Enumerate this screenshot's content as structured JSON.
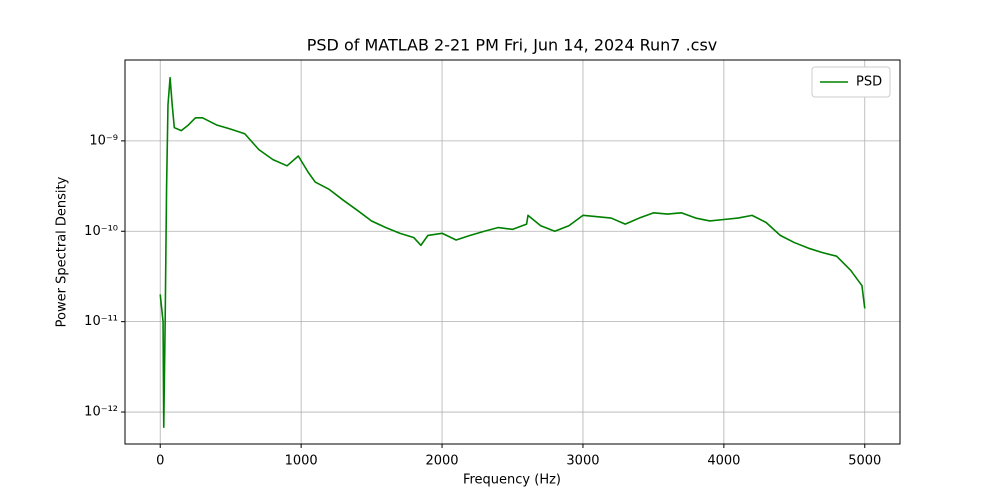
{
  "chart_data": {
    "type": "line",
    "title": "PSD of MATLAB 2-21 PM Fri, Jun 14, 2024 Run7 .csv",
    "x_label": "Frequency (Hz)",
    "y_label": "Power Spectral Density",
    "x": [
      0,
      20,
      25,
      35,
      45,
      55,
      70,
      85,
      100,
      150,
      200,
      250,
      300,
      400,
      500,
      600,
      700,
      800,
      900,
      980,
      1050,
      1100,
      1200,
      1300,
      1400,
      1500,
      1600,
      1700,
      1800,
      1850,
      1900,
      2000,
      2100,
      2200,
      2300,
      2400,
      2500,
      2600,
      2610,
      2700,
      2800,
      2900,
      3000,
      3100,
      3200,
      3300,
      3400,
      3500,
      3600,
      3700,
      3800,
      3900,
      4000,
      4100,
      4200,
      4300,
      4400,
      4500,
      4600,
      4700,
      4800,
      4900,
      4980,
      5000
    ],
    "series": [
      {
        "name": "PSD",
        "color": "#008000",
        "values": [
          2e-11,
          1e-11,
          6.8e-13,
          1e-11,
          3e-10,
          2.5e-09,
          5e-09,
          2.5e-09,
          1.4e-09,
          1.3e-09,
          1.5e-09,
          1.8e-09,
          1.8e-09,
          1.5e-09,
          1.35e-09,
          1.2e-09,
          8e-10,
          6.2e-10,
          5.3e-10,
          6.8e-10,
          4.5e-10,
          3.5e-10,
          2.9e-10,
          2.2e-10,
          1.7e-10,
          1.3e-10,
          1.1e-10,
          9.5e-11,
          8.5e-11,
          7e-11,
          9e-11,
          9.5e-11,
          8e-11,
          9e-11,
          1e-10,
          1.1e-10,
          1.05e-10,
          1.2e-10,
          1.5e-10,
          1.15e-10,
          1e-10,
          1.15e-10,
          1.5e-10,
          1.45e-10,
          1.4e-10,
          1.2e-10,
          1.4e-10,
          1.6e-10,
          1.55e-10,
          1.6e-10,
          1.4e-10,
          1.3e-10,
          1.35e-10,
          1.4e-10,
          1.5e-10,
          1.25e-10,
          9e-11,
          7.5e-11,
          6.5e-11,
          5.8e-11,
          5.3e-11,
          3.7e-11,
          2.5e-11,
          1.4e-11
        ]
      }
    ],
    "xlim": [
      -250,
      5250
    ],
    "xticks": [
      0,
      1000,
      2000,
      3000,
      4000,
      5000
    ],
    "ylim": [
      4.43e-13,
      7.85e-09
    ],
    "log_y": true,
    "yticks": [
      {
        "value": 1e-12,
        "label": "10⁻¹²"
      },
      {
        "value": 1e-11,
        "label": "10⁻¹¹"
      },
      {
        "value": 1e-10,
        "label": "10⁻¹⁰"
      },
      {
        "value": 1e-09,
        "label": "10⁻⁹"
      }
    ],
    "grid": true,
    "legend": "upper-right"
  }
}
